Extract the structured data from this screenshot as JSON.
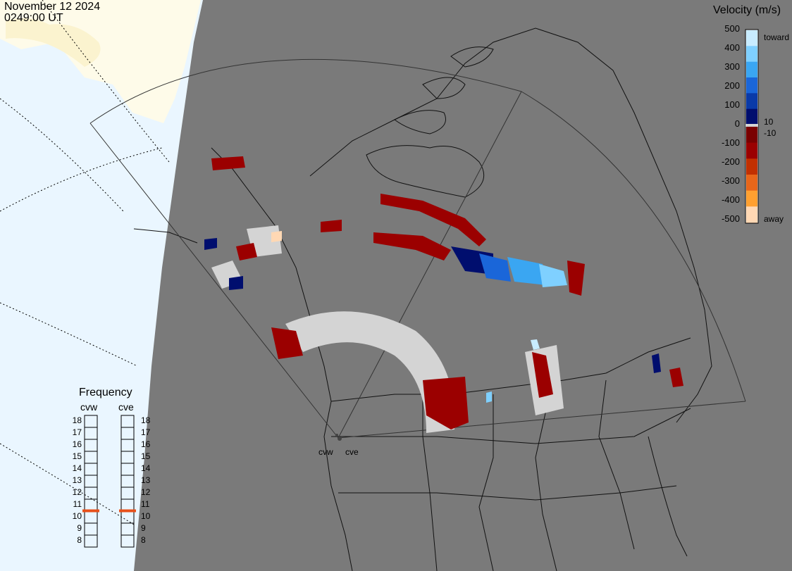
{
  "header": {
    "date": "November 12 2024",
    "time": "0249:00 UT"
  },
  "colorbar": {
    "title": "Velocity (m/s)",
    "ticks": [
      "500",
      "400",
      "300",
      "200",
      "100",
      "0",
      "-100",
      "-200",
      "-300",
      "-400",
      "-500"
    ],
    "inner_ticks": [
      "10",
      "-10"
    ],
    "toward_label": "toward",
    "away_label": "away",
    "colors": {
      "toward": [
        "#c8ecff",
        "#7fd0ff",
        "#3aa6f2",
        "#1a66d9",
        "#0a3aa8",
        "#000e6e"
      ],
      "away": [
        "#7a0000",
        "#9b0000",
        "#c23000",
        "#e8661a",
        "#ffa030",
        "#ffd8b4"
      ]
    }
  },
  "frequency": {
    "title": "Frequency",
    "radars": [
      {
        "name": "cvw",
        "value_mhz": 10.5
      },
      {
        "name": "cve",
        "value_mhz": 10.5
      }
    ],
    "scale": [
      "18",
      "17",
      "16",
      "15",
      "14",
      "13",
      "12",
      "11",
      "10",
      "9",
      "8"
    ],
    "marker_color": "#e8501a"
  },
  "map": {
    "site_labels": [
      "cvw",
      "cve"
    ],
    "colors": {
      "ocean": "#eaf6ff",
      "land_lit": "#fefbe9",
      "night": "#7a7a7a",
      "away": "#9b0000",
      "toward_dark": "#000e6e",
      "toward_light": "#7fd0ff",
      "ground_scatter": "#d4d4d4"
    }
  }
}
